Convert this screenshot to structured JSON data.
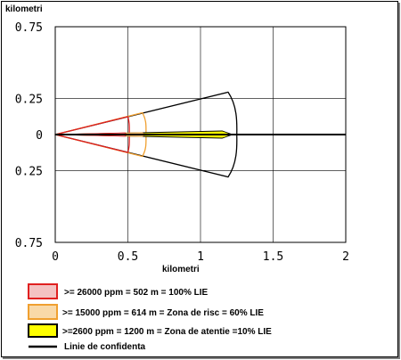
{
  "chart_data": {
    "type": "area",
    "xlabel": "kilometri",
    "ylabel": "kilometri",
    "xlim": [
      0,
      2
    ],
    "ylim": [
      -0.75,
      0.75
    ],
    "x_ticks": [
      {
        "value": 0,
        "label": "0"
      },
      {
        "value": 0.5,
        "label": "0.5"
      },
      {
        "value": 1,
        "label": "1"
      },
      {
        "value": 1.5,
        "label": "1.5"
      },
      {
        "value": 2,
        "label": "2"
      }
    ],
    "y_ticks": [
      {
        "value": 0.75,
        "label": "0.75"
      },
      {
        "value": 0.25,
        "label": "0.25"
      },
      {
        "value": 0,
        "label": "0"
      },
      {
        "value": -0.25,
        "label": "0.25"
      },
      {
        "value": -0.75,
        "label": "0.75"
      }
    ],
    "grid": true,
    "legend_position": "bottom-left",
    "series": [
      {
        "name": ">= 26000 ppm = 502 m = 100% LIE",
        "color": "#e02020",
        "fill": "#f4c2c2",
        "outline": [
          [
            0,
            0
          ],
          [
            0.5,
            0.125
          ],
          [
            0.51,
            0
          ],
          [
            0.5,
            -0.125
          ],
          [
            0,
            0
          ]
        ],
        "core": [
          [
            0,
            0
          ],
          [
            0.48,
            0.012
          ],
          [
            0.49,
            0
          ],
          [
            0.48,
            -0.012
          ],
          [
            0,
            0
          ]
        ]
      },
      {
        "name": ">= 15000 ppm = 614 m = Zona de risc = 60% LIE",
        "color": "#f0a030",
        "fill": "#f9d9a8",
        "outline": [
          [
            0,
            0
          ],
          [
            0.6,
            0.152
          ],
          [
            0.625,
            0
          ],
          [
            0.6,
            -0.152
          ],
          [
            0,
            0
          ]
        ],
        "core": [
          [
            0,
            0
          ],
          [
            0.6,
            0.013
          ],
          [
            0.62,
            0
          ],
          [
            0.6,
            -0.013
          ],
          [
            0,
            0
          ]
        ]
      },
      {
        "name": ">=2600 ppm = 1200 m = Zona de atentie =10% LIE",
        "color": "#000000",
        "fill": "#ffff00",
        "outline": [
          [
            0,
            0
          ],
          [
            1.19,
            0.295
          ],
          [
            1.25,
            0
          ],
          [
            1.19,
            -0.295
          ],
          [
            0,
            0
          ]
        ],
        "core": [
          [
            0,
            0
          ],
          [
            1.15,
            0.025
          ],
          [
            1.22,
            0
          ],
          [
            1.15,
            -0.025
          ],
          [
            0,
            0
          ]
        ]
      }
    ],
    "confidence_line": {
      "name": "Linie de confidenta",
      "color": "#000000",
      "x": [
        0,
        2
      ],
      "y": [
        0,
        0
      ]
    }
  }
}
